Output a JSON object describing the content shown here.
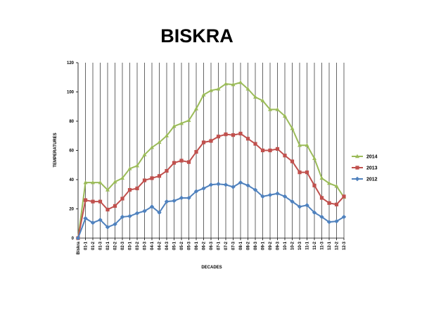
{
  "chart_data": {
    "type": "line",
    "title": "BISKRA",
    "xlabel": "DECADES",
    "ylabel": "TEMPERATURES",
    "ylim": [
      0,
      120
    ],
    "yticks": [
      0,
      20,
      40,
      60,
      80,
      100,
      120
    ],
    "grid": "vertical lines at each category",
    "legend_position": "right",
    "categories": [
      "Biskra",
      "01-1",
      "01-2",
      "01-3",
      "02-1",
      "02-2",
      "02-3",
      "03-1",
      "03-2",
      "03-3",
      "04-1",
      "04-2",
      "04-3",
      "05-1",
      "05-2",
      "05-3",
      "06-1",
      "06-2",
      "06-3",
      "07-1",
      "07-2",
      "07-3",
      "08-1",
      "08-2",
      "08-3",
      "09-1",
      "09-2",
      "09-3",
      "10-1",
      "10-2",
      "10-3",
      "11-1",
      "11-2",
      "11-3",
      "12-1",
      "12-2",
      "12-3"
    ],
    "series": [
      {
        "name": "2014",
        "color": "#9BBB59",
        "marker": "triangle",
        "values": [
          0,
          38,
          38,
          38,
          33,
          38.5,
          41,
          47.5,
          49.5,
          57,
          62,
          65.5,
          70,
          76.5,
          78.5,
          80.5,
          88.5,
          98,
          101,
          102,
          105.5,
          105,
          106.5,
          102,
          96.5,
          94,
          88,
          88,
          83.5,
          75,
          63.5,
          63.5,
          54.5,
          41,
          37.5,
          35.5,
          28
        ]
      },
      {
        "name": "2013",
        "color": "#C0504D",
        "marker": "square",
        "values": [
          0,
          26,
          25,
          25,
          19.5,
          22,
          27,
          33,
          34,
          39.5,
          41,
          42.5,
          46,
          51.5,
          53,
          52,
          59,
          65.5,
          66.5,
          69.5,
          71,
          70.5,
          71.5,
          68,
          64.5,
          60,
          60,
          61,
          56.5,
          52.5,
          45,
          45,
          36,
          27.5,
          24,
          23,
          28.5
        ]
      },
      {
        "name": "2012",
        "color": "#4F81BD",
        "marker": "diamond",
        "values": [
          0,
          13.5,
          10.5,
          12.5,
          7.5,
          9.5,
          14.5,
          15,
          17,
          18.5,
          21.5,
          17.5,
          25,
          25.5,
          27.5,
          27.5,
          32,
          34,
          36.5,
          37,
          36.5,
          35,
          38,
          36,
          33,
          28.5,
          29.5,
          30.5,
          28.5,
          25,
          21.5,
          22.5,
          17.5,
          14.5,
          11,
          11.5,
          14.5
        ]
      }
    ]
  }
}
